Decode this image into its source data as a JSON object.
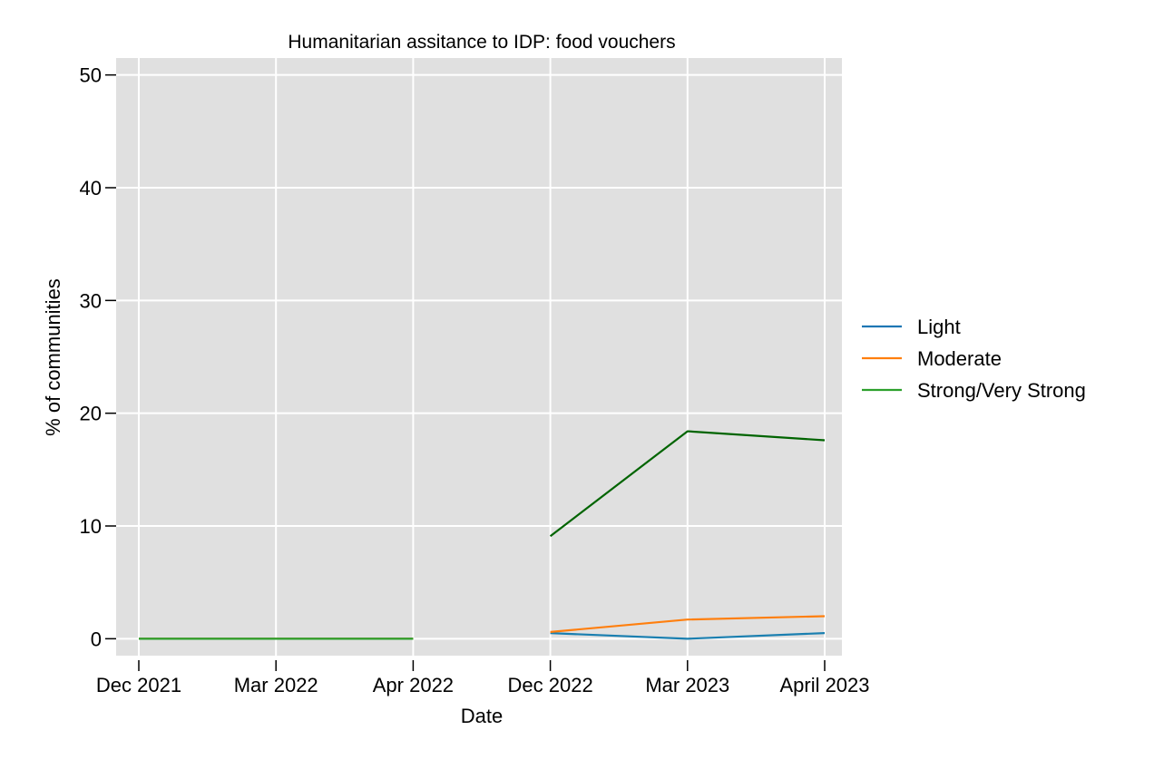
{
  "chart_data": {
    "type": "line",
    "title": "Humanitarian assitance to IDP: food vouchers",
    "xlabel": "Date",
    "ylabel": "% of communities",
    "categories": [
      "Dec 2021",
      "Mar 2022",
      "Apr 2022",
      "Dec 2022",
      "Mar 2023",
      "April 2023"
    ],
    "ylim": [
      -1.5,
      51.5
    ],
    "yticks": [
      0,
      10,
      20,
      30,
      40,
      50
    ],
    "grid": true,
    "legend_position": "right",
    "background": "#e0e0e0",
    "grid_color": "#ffffff",
    "legend": [
      {
        "name": "Light",
        "color": "#1f77b4"
      },
      {
        "name": "Moderate",
        "color": "#ff7f0e"
      },
      {
        "name": "Strong/Very Strong",
        "color": "#2ca02c"
      }
    ],
    "series": [
      {
        "legend_index": 0,
        "color": "#1a7fb0",
        "values": [
          0,
          0,
          0,
          null,
          null,
          null
        ]
      },
      {
        "legend_index": 1,
        "color": "#ff7f0e",
        "values": [
          0,
          0,
          0,
          null,
          null,
          null
        ]
      },
      {
        "legend_index": 2,
        "color": "#2ca02c",
        "values": [
          0,
          0,
          0,
          null,
          null,
          null
        ]
      },
      {
        "legend_index": 0,
        "color": "#1a7fb0",
        "values": [
          null,
          null,
          null,
          0.5,
          0.0,
          0.5
        ]
      },
      {
        "legend_index": 1,
        "color": "#ff7f0e",
        "values": [
          null,
          null,
          null,
          0.6,
          1.7,
          2.0
        ]
      },
      {
        "legend_index": 2,
        "color": "#006400",
        "values": [
          null,
          null,
          null,
          9.1,
          18.4,
          17.6
        ]
      }
    ]
  }
}
